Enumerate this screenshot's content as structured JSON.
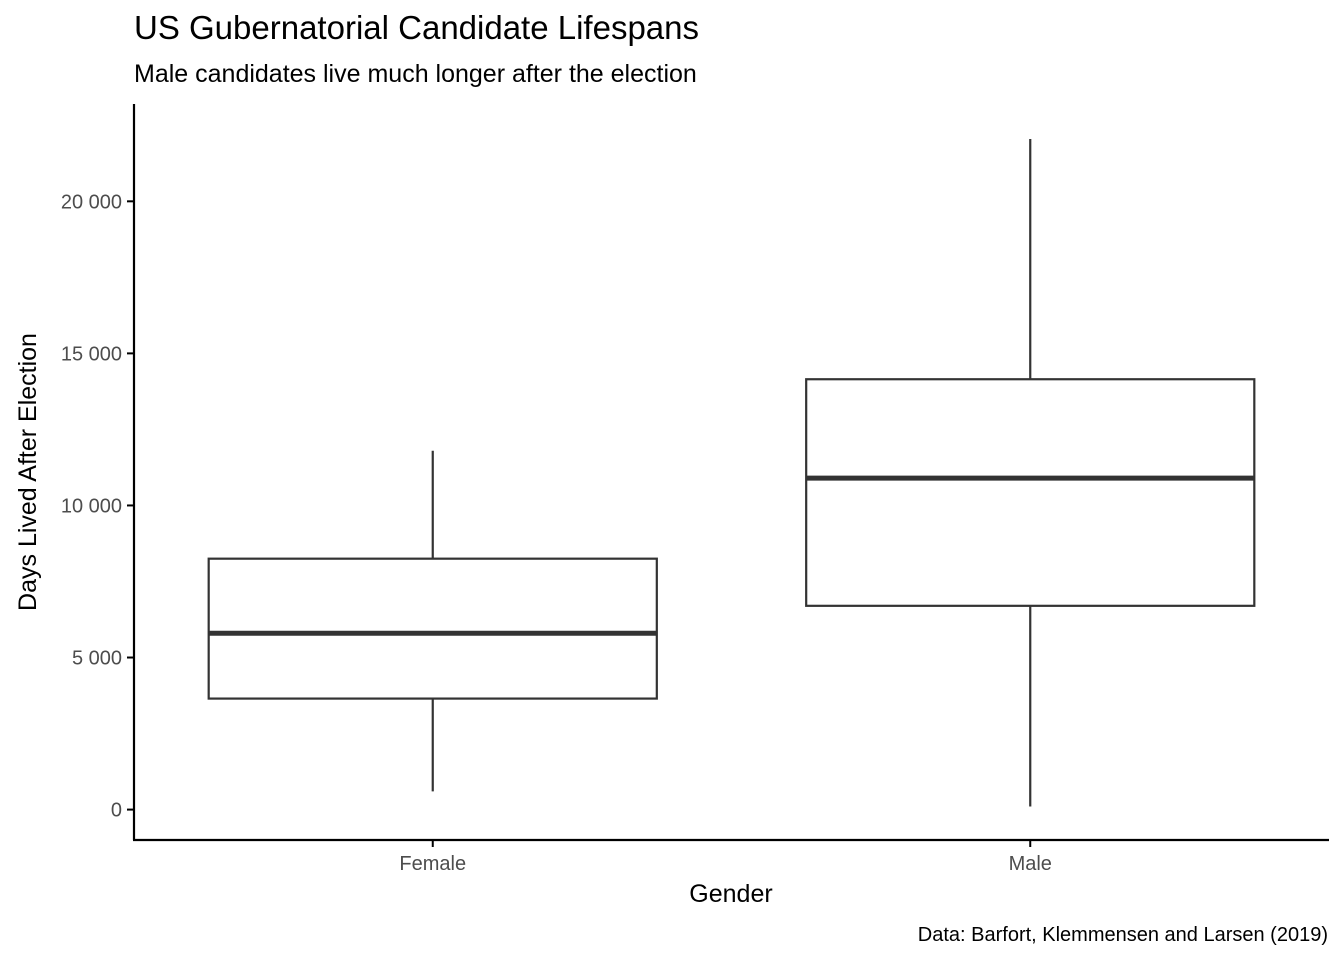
{
  "chart_data": {
    "type": "boxplot",
    "title": "US Gubernatorial Candidate Lifespans",
    "subtitle": "Male candidates live much longer after the election",
    "xlabel": "Gender",
    "ylabel": "Days Lived After Election",
    "caption": "Data: Barfort, Klemmensen and Larsen (2019)",
    "categories": [
      "Female",
      "Male"
    ],
    "boxes": [
      {
        "category": "Female",
        "whisker_low": 600,
        "q1": 3650,
        "median": 5800,
        "q3": 8250,
        "whisker_high": 11800
      },
      {
        "category": "Male",
        "whisker_low": 100,
        "q1": 6700,
        "median": 10900,
        "q3": 14150,
        "whisker_high": 22050
      }
    ],
    "ylim": [
      -1000,
      23200
    ],
    "y_ticks": [
      0,
      5000,
      10000,
      15000,
      20000
    ],
    "y_tick_labels": [
      "0",
      "5 000",
      "10 000",
      "15 000",
      "20 000"
    ],
    "grid": false,
    "legend": "none",
    "colors": {
      "box_stroke": "#333333",
      "box_fill": "#ffffff",
      "axis": "#000000",
      "tick_label": "#4d4d4d"
    }
  }
}
